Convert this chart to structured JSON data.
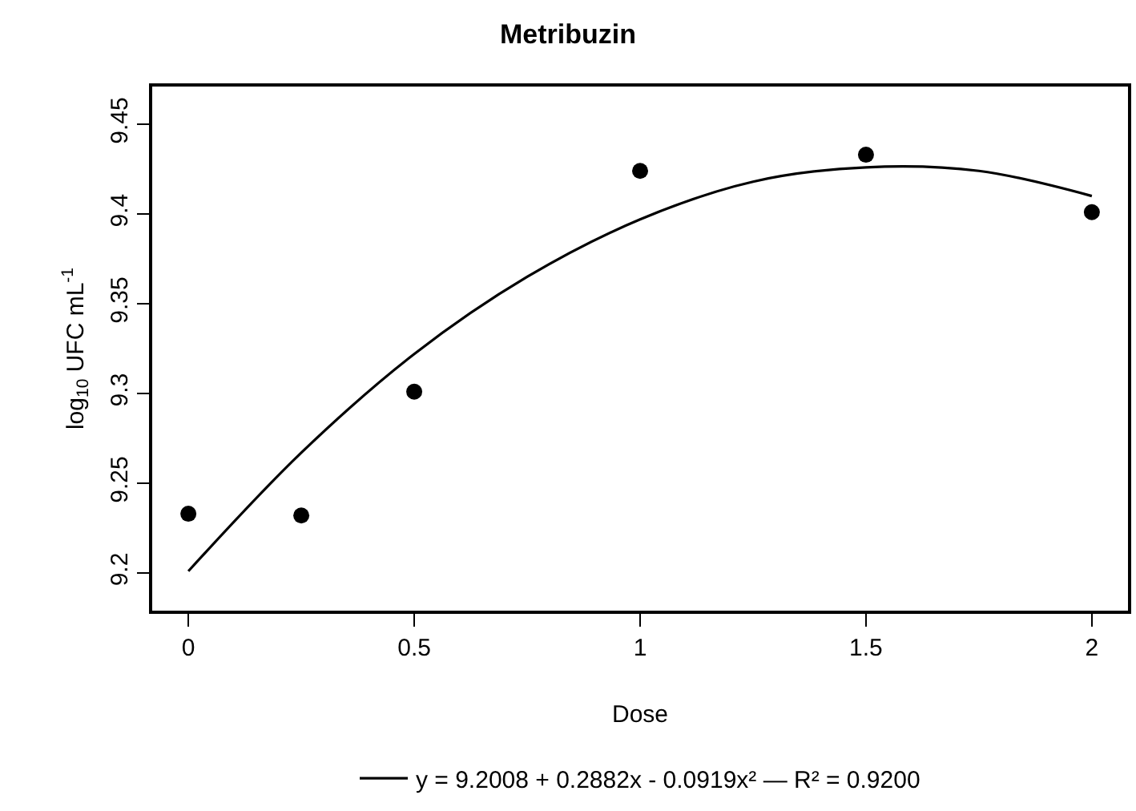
{
  "chart_data": {
    "type": "scatter",
    "title": "Metribuzin",
    "xlabel": "Dose",
    "ylabel": "log$_{10}$ UFC mL$^{-1}$",
    "x": [
      0,
      0.25,
      0.5,
      1,
      1.5,
      2
    ],
    "series": [
      {
        "color": "#000000",
        "marker": "circle",
        "values": [
          9.233,
          9.232,
          9.301,
          9.424,
          9.433,
          9.401
        ]
      },
      {
        "type": "line",
        "name": "y = 9.2008 + 0.2882x - 0.0919x² — R² = 0.9200",
        "color": "#000000",
        "line_style": "solid",
        "x": [
          0,
          0.25,
          0.5,
          0.75,
          1,
          1.25,
          1.5,
          1.75,
          2
        ],
        "values": [
          9.201,
          9.267,
          9.322,
          9.365,
          9.397,
          9.418,
          9.426,
          9.424,
          9.41
        ]
      }
    ],
    "xlim": [
      -0.08,
      2.08
    ],
    "xticks": [
      0,
      0.5,
      1,
      1.5,
      2
    ],
    "ylim": [
      9.179,
      9.471
    ],
    "yticks": [
      9.2,
      9.25,
      9.3,
      9.35,
      9.4,
      9.45
    ],
    "legend": "bottom"
  }
}
